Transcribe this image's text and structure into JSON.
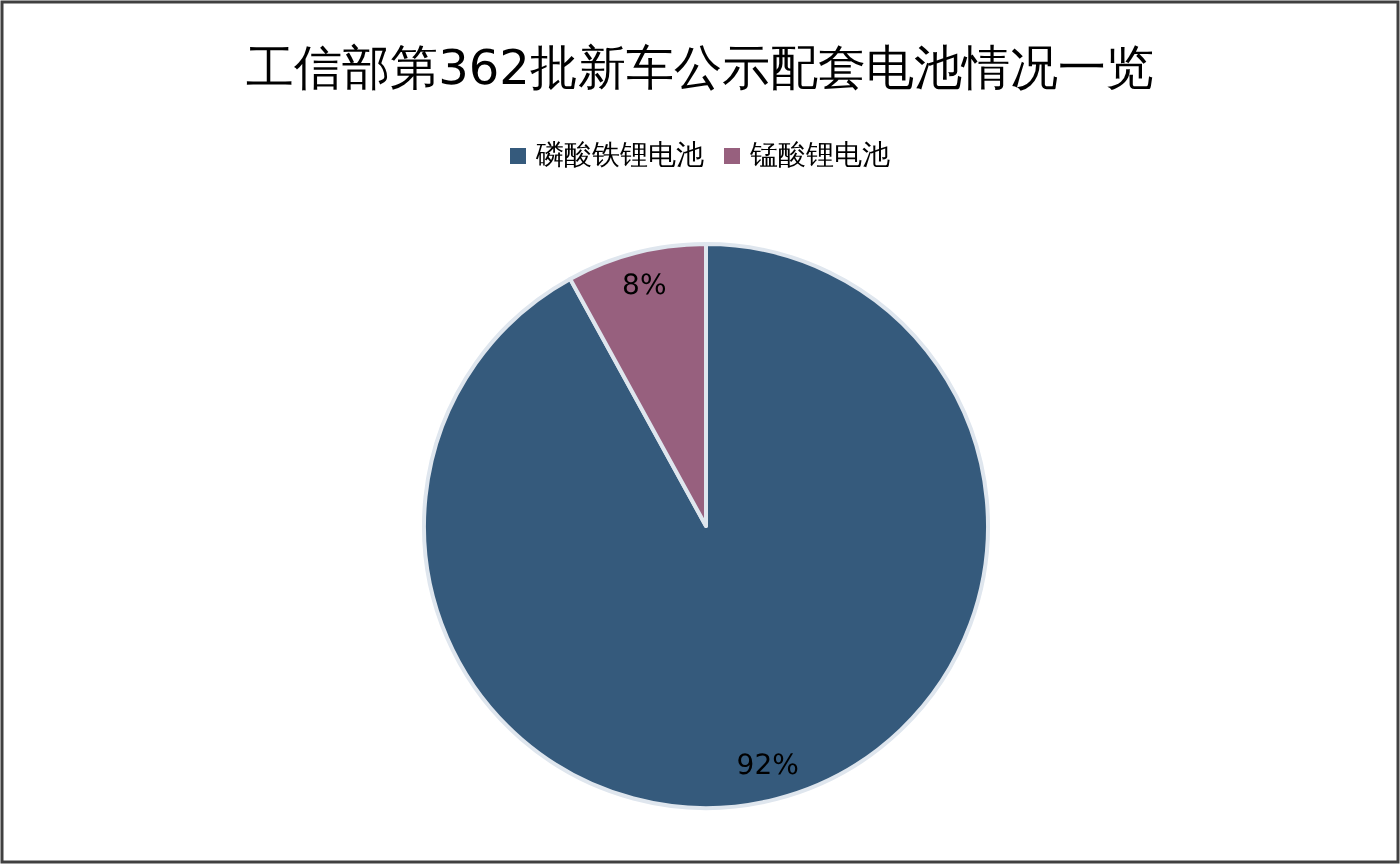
{
  "chart_data": {
    "type": "pie",
    "title": "工信部第362批新车公示配套电池情况一览",
    "categories": [
      "磷酸铁锂电池",
      "锰酸锂电池"
    ],
    "values": [
      92,
      8
    ],
    "colors": [
      "#355a7c",
      "#97607e"
    ],
    "value_labels": [
      "92%",
      "8%"
    ],
    "legend": "top"
  }
}
